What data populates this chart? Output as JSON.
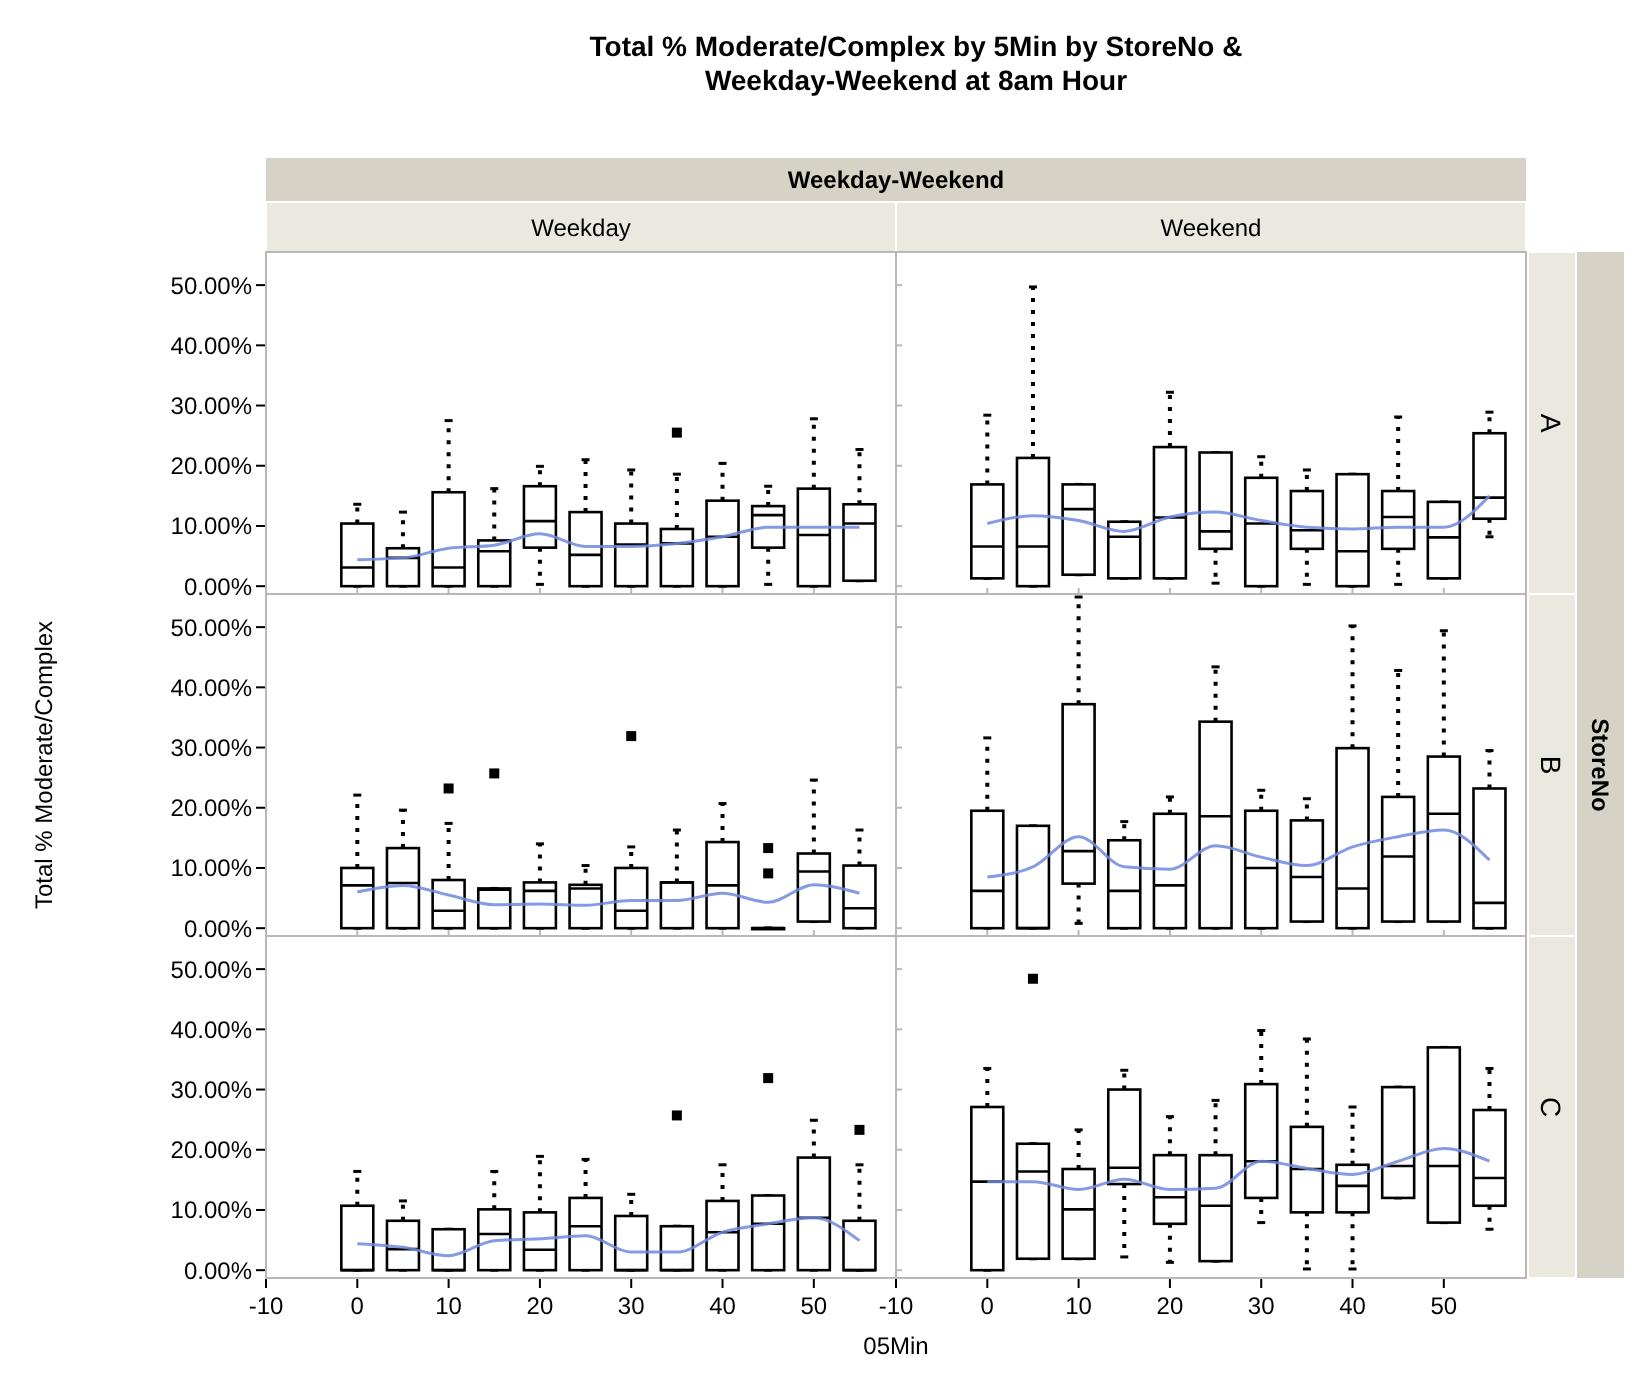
{
  "chart_data": [
    {
      "type": "box",
      "title": "Total % Moderate/Complex by 5Min by StoreNo & Weekday-Weekend at 8am Hour",
      "annotations": [
        "Weekday-Weekend",
        "StoreNo"
      ],
      "xlabel": "05Min",
      "ylabel": "Total % Moderate/Complex",
      "subtitle": "Weekday",
      "tick_labels": "y",
      "x": [
        0,
        5,
        10,
        15,
        20,
        25,
        30,
        35,
        40,
        45,
        50,
        55
      ],
      "xlim": [
        -10,
        59
      ],
      "xticks": [
        {
          "value": -10,
          "label": null
        },
        {
          "value": 0,
          "label": null
        },
        {
          "value": 10,
          "label": null
        },
        {
          "value": 20,
          "label": null
        },
        {
          "value": 30,
          "label": null
        },
        {
          "value": 40,
          "label": null
        },
        {
          "value": 50,
          "label": null
        }
      ],
      "ylim": [
        -1.3,
        55.5
      ],
      "yticks": [
        {
          "value": 0,
          "label": "0.00%"
        },
        {
          "value": 10,
          "label": "10.00%"
        },
        {
          "value": 20,
          "label": "20.00%"
        },
        {
          "value": 30,
          "label": "30.00%"
        },
        {
          "value": 40,
          "label": "40.00%"
        },
        {
          "value": 50,
          "label": "50.00%"
        }
      ],
      "series": [
        {
          "type": "box",
          "color": "#000000",
          "boxes": [
            {
              "low": 0,
              "q1": 0,
              "median": 3.1,
              "q3": 10.4,
              "high": 13.6
            },
            {
              "low": 0,
              "q1": 0,
              "median": 4.7,
              "q3": 6.3,
              "high": 12.3
            },
            {
              "low": 0,
              "q1": 0,
              "median": 3.1,
              "q3": 15.6,
              "high": 27.5
            },
            {
              "low": 0,
              "q1": 0,
              "median": 5.8,
              "q3": 7.6,
              "high": 16.2
            },
            {
              "low": 0.3,
              "q1": 6.4,
              "median": 10.8,
              "q3": 16.6,
              "high": 19.9
            },
            {
              "low": 0,
              "q1": 0,
              "median": 5.2,
              "q3": 12.3,
              "high": 21
            },
            {
              "low": 0,
              "q1": 0,
              "median": 6.9,
              "q3": 10.4,
              "high": 19.3
            },
            {
              "low": 0,
              "q1": 0,
              "median": 7.1,
              "q3": 9.5,
              "high": 18.6,
              "outliers": [
                25.5
              ]
            },
            {
              "low": 0,
              "q1": 0,
              "median": 8.2,
              "q3": 14.2,
              "high": 20.4
            },
            {
              "low": 0.3,
              "q1": 6.4,
              "median": 11.8,
              "q3": 13.3,
              "high": 16.6
            },
            {
              "low": 0,
              "q1": 0,
              "median": 8.5,
              "q3": 16.2,
              "high": 27.8
            },
            {
              "low": 0.9,
              "q1": 0.9,
              "median": 10.4,
              "q3": 13.6,
              "high": 22.7
            }
          ]
        },
        {
          "type": "line",
          "color": "#7088dd",
          "values": [
            4.4,
            4.7,
            6.3,
            6.8,
            8.7,
            6.6,
            6.6,
            7.1,
            8.2,
            9.8,
            9.8,
            9.8
          ]
        }
      ]
    },
    {
      "type": "box",
      "subtitle": "Weekend",
      "y2label": "A",
      "tick_labels": false,
      "x": [
        0,
        5,
        10,
        15,
        20,
        25,
        30,
        35,
        40,
        45,
        50,
        55
      ],
      "xlim": [
        -10,
        59
      ],
      "xticks": [
        {
          "value": -10,
          "label": null
        },
        {
          "value": 0,
          "label": null
        },
        {
          "value": 10,
          "label": null
        },
        {
          "value": 20,
          "label": null
        },
        {
          "value": 30,
          "label": null
        },
        {
          "value": 40,
          "label": null
        },
        {
          "value": 50,
          "label": null
        }
      ],
      "ylim": [
        -1.3,
        55.5
      ],
      "yticks": [
        {
          "value": 0,
          "label": null
        },
        {
          "value": 10,
          "label": null
        },
        {
          "value": 20,
          "label": null
        },
        {
          "value": 30,
          "label": null
        },
        {
          "value": 40,
          "label": null
        },
        {
          "value": 50,
          "label": null
        }
      ],
      "series": [
        {
          "type": "box",
          "color": "#000000",
          "boxes": [
            {
              "low": 1.3,
              "q1": 1.3,
              "median": 6.6,
              "q3": 16.9,
              "high": 28.4
            },
            {
              "low": 0,
              "q1": 0,
              "median": 6.6,
              "q3": 21.3,
              "high": 49.7
            },
            {
              "low": 1.9,
              "q1": 1.9,
              "median": 12.8,
              "q3": 16.9,
              "high": 16.9
            },
            {
              "low": 1.3,
              "q1": 1.3,
              "median": 8.2,
              "q3": 10.7,
              "high": 10.7
            },
            {
              "low": 1.3,
              "q1": 1.3,
              "median": 11.4,
              "q3": 23.1,
              "high": 32.2
            },
            {
              "low": 0.5,
              "q1": 6.2,
              "median": 9.1,
              "q3": 22.2,
              "high": 22.2
            },
            {
              "low": 0,
              "q1": 0,
              "median": 10.4,
              "q3": 18,
              "high": 21.5
            },
            {
              "low": 0.3,
              "q1": 6.2,
              "median": 9.3,
              "q3": 15.8,
              "high": 19.3
            },
            {
              "low": 0,
              "q1": 0,
              "median": 5.8,
              "q3": 18.6,
              "high": 18.6
            },
            {
              "low": 0.3,
              "q1": 6.2,
              "median": 11.5,
              "q3": 15.8,
              "high": 28.1
            },
            {
              "low": 1.3,
              "q1": 1.3,
              "median": 8.1,
              "q3": 14,
              "high": 14
            },
            {
              "low": 8.2,
              "q1": 11.2,
              "median": 14.7,
              "q3": 25.4,
              "high": 28.9
            }
          ]
        },
        {
          "type": "line",
          "color": "#7088dd",
          "values": [
            10.4,
            11.7,
            10.9,
            9.1,
            11.5,
            12.3,
            10.9,
            9.8,
            9.5,
            9.8,
            9.8,
            15
          ]
        }
      ]
    },
    {
      "type": "box",
      "tick_labels": "y",
      "x": [
        0,
        5,
        10,
        15,
        20,
        25,
        30,
        35,
        40,
        45,
        50,
        55
      ],
      "xlim": [
        -10,
        59
      ],
      "xticks": [
        {
          "value": -10,
          "label": null
        },
        {
          "value": 0,
          "label": null
        },
        {
          "value": 10,
          "label": null
        },
        {
          "value": 20,
          "label": null
        },
        {
          "value": 30,
          "label": null
        },
        {
          "value": 40,
          "label": null
        },
        {
          "value": 50,
          "label": null
        }
      ],
      "ylim": [
        -1.3,
        55.5
      ],
      "yticks": [
        {
          "value": 0,
          "label": "0.00%"
        },
        {
          "value": 10,
          "label": "10.00%"
        },
        {
          "value": 20,
          "label": "20.00%"
        },
        {
          "value": 30,
          "label": "30.00%"
        },
        {
          "value": 40,
          "label": "40.00%"
        },
        {
          "value": 50,
          "label": "50.00%"
        }
      ],
      "series": [
        {
          "type": "box",
          "color": "#000000",
          "boxes": [
            {
              "low": 0,
              "q1": 0,
              "median": 7.1,
              "q3": 10,
              "high": 22.1
            },
            {
              "low": 0,
              "q1": 0,
              "median": 7.5,
              "q3": 13.3,
              "high": 19.6
            },
            {
              "low": 0,
              "q1": 0,
              "median": 2.9,
              "q3": 8,
              "high": 17.4,
              "outliers": [
                23.2
              ]
            },
            {
              "low": 0,
              "q1": 0,
              "median": 6.4,
              "q3": 6.6,
              "high": 6.6,
              "outliers": [
                25.7
              ]
            },
            {
              "low": 0,
              "q1": 0,
              "median": 6.2,
              "q3": 7.6,
              "high": 14
            },
            {
              "low": 0,
              "q1": 0,
              "median": 6.6,
              "q3": 7.2,
              "high": 10.4
            },
            {
              "low": 0,
              "q1": 0,
              "median": 2.9,
              "q3": 10,
              "high": 13.5,
              "outliers": [
                31.9
              ]
            },
            {
              "low": 0,
              "q1": 0,
              "median": 7.6,
              "q3": 7.6,
              "high": 16.3
            },
            {
              "low": 0,
              "q1": 0,
              "median": 7.1,
              "q3": 14.3,
              "high": 20.7
            },
            {
              "low": 0,
              "q1": 0,
              "median": 0,
              "q3": 0,
              "high": 0,
              "outliers": [
                9.1,
                13.3
              ]
            },
            {
              "low": 1.1,
              "q1": 1.1,
              "median": 9.4,
              "q3": 12.4,
              "high": 24.6
            },
            {
              "low": 0,
              "q1": 0,
              "median": 3.3,
              "q3": 10.4,
              "high": 16.3
            }
          ]
        },
        {
          "type": "line",
          "color": "#7088dd",
          "values": [
            6,
            7.1,
            5.5,
            3.9,
            4,
            3.8,
            4.6,
            4.6,
            5.8,
            4.3,
            7.2,
            5.8
          ]
        }
      ]
    },
    {
      "type": "box",
      "y2label": "B",
      "tick_labels": false,
      "x": [
        0,
        5,
        10,
        15,
        20,
        25,
        30,
        35,
        40,
        45,
        50,
        55
      ],
      "xlim": [
        -10,
        59
      ],
      "xticks": [
        {
          "value": -10,
          "label": null
        },
        {
          "value": 0,
          "label": null
        },
        {
          "value": 10,
          "label": null
        },
        {
          "value": 20,
          "label": null
        },
        {
          "value": 30,
          "label": null
        },
        {
          "value": 40,
          "label": null
        },
        {
          "value": 50,
          "label": null
        }
      ],
      "ylim": [
        -1.3,
        55.5
      ],
      "yticks": [
        {
          "value": 0,
          "label": null
        },
        {
          "value": 10,
          "label": null
        },
        {
          "value": 20,
          "label": null
        },
        {
          "value": 30,
          "label": null
        },
        {
          "value": 40,
          "label": null
        },
        {
          "value": 50,
          "label": null
        }
      ],
      "series": [
        {
          "type": "box",
          "color": "#000000",
          "boxes": [
            {
              "low": 0,
              "q1": 0,
              "median": 6.2,
              "q3": 19.5,
              "high": 31.6
            },
            {
              "low": 0,
              "q1": 0,
              "median": 0,
              "q3": 17,
              "high": 17
            },
            {
              "low": 0.8,
              "q1": 7.4,
              "median": 12.8,
              "q3": 37.2,
              "high": 55
            },
            {
              "low": 0,
              "q1": 0,
              "median": 6.2,
              "q3": 14.6,
              "high": 17.7
            },
            {
              "low": 0,
              "q1": 0,
              "median": 7.1,
              "q3": 19,
              "high": 21.8
            },
            {
              "low": 0,
              "q1": 0,
              "median": 18.6,
              "q3": 34.3,
              "high": 43.4
            },
            {
              "low": 0,
              "q1": 0,
              "median": 10,
              "q3": 19.5,
              "high": 22.9
            },
            {
              "low": 1.1,
              "q1": 1.1,
              "median": 8.5,
              "q3": 17.9,
              "high": 21.5
            },
            {
              "low": 0,
              "q1": 0,
              "median": 6.6,
              "q3": 29.9,
              "high": 50.2
            },
            {
              "low": 1.1,
              "q1": 1.1,
              "median": 11.9,
              "q3": 21.8,
              "high": 42.8
            },
            {
              "low": 1.1,
              "q1": 1.1,
              "median": 19,
              "q3": 28.5,
              "high": 49.4
            },
            {
              "low": 0,
              "q1": 0,
              "median": 4.2,
              "q3": 23.2,
              "high": 29.5
            }
          ]
        },
        {
          "type": "line",
          "color": "#7088dd",
          "values": [
            8.5,
            10.2,
            15.2,
            10.2,
            9.8,
            13.7,
            11.8,
            10.4,
            13.5,
            15.2,
            16.3,
            11.3
          ]
        }
      ]
    },
    {
      "type": "box",
      "x": [
        0,
        5,
        10,
        15,
        20,
        25,
        30,
        35,
        40,
        45,
        50,
        55
      ],
      "xlim": [
        -10,
        59
      ],
      "xticks": [
        -10,
        0,
        10,
        20,
        30,
        40,
        50
      ],
      "ylim": [
        -1.3,
        55.5
      ],
      "yticks": [
        {
          "value": 0,
          "label": "0.00%"
        },
        {
          "value": 10,
          "label": "10.00%"
        },
        {
          "value": 20,
          "label": "20.00%"
        },
        {
          "value": 30,
          "label": "30.00%"
        },
        {
          "value": 40,
          "label": "40.00%"
        },
        {
          "value": 50,
          "label": "50.00%"
        }
      ],
      "series": [
        {
          "type": "box",
          "color": "#000000",
          "boxes": [
            {
              "low": 0,
              "q1": 0,
              "median": 0,
              "q3": 10.7,
              "high": 16.4
            },
            {
              "low": 0,
              "q1": 0,
              "median": 3.5,
              "q3": 8.2,
              "high": 11.5
            },
            {
              "low": 0,
              "q1": 0,
              "median": 0,
              "q3": 6.8,
              "high": 6.8
            },
            {
              "low": 0,
              "q1": 0,
              "median": 6,
              "q3": 10.1,
              "high": 16.4
            },
            {
              "low": 0,
              "q1": 0,
              "median": 3.4,
              "q3": 9.6,
              "high": 18.9
            },
            {
              "low": 0,
              "q1": 0,
              "median": 7.3,
              "q3": 12,
              "high": 18.4
            },
            {
              "low": 0,
              "q1": 0,
              "median": 0,
              "q3": 9,
              "high": 12.6
            },
            {
              "low": 0,
              "q1": 0,
              "median": 0,
              "q3": 7.3,
              "high": 7.3,
              "outliers": [
                25.7
              ]
            },
            {
              "low": 0,
              "q1": 0,
              "median": 6.3,
              "q3": 11.5,
              "high": 17.5
            },
            {
              "low": 0,
              "q1": 0,
              "median": 7.7,
              "q3": 12.4,
              "high": 12.4,
              "outliers": [
                31.9
              ]
            },
            {
              "low": 0,
              "q1": 0,
              "median": 8.7,
              "q3": 18.7,
              "high": 24.9
            },
            {
              "low": 0,
              "q1": 0,
              "median": 0,
              "q3": 8.2,
              "high": 17.5,
              "outliers": [
                23.3
              ]
            }
          ]
        },
        {
          "type": "line",
          "color": "#7088dd",
          "values": [
            4.4,
            3.8,
            2.4,
            4.9,
            5.2,
            5.7,
            3,
            3,
            6.3,
            7.7,
            8.7,
            4.9
          ]
        }
      ]
    },
    {
      "type": "box",
      "y2label": "C",
      "tick_labels": "x",
      "x": [
        0,
        5,
        10,
        15,
        20,
        25,
        30,
        35,
        40,
        45,
        50,
        55
      ],
      "xlim": [
        -10,
        59
      ],
      "xticks": [
        -10,
        0,
        10,
        20,
        30,
        40,
        50
      ],
      "ylim": [
        -1.3,
        55.5
      ],
      "yticks": [
        {
          "value": 0,
          "label": null
        },
        {
          "value": 10,
          "label": null
        },
        {
          "value": 20,
          "label": null
        },
        {
          "value": 30,
          "label": null
        },
        {
          "value": 40,
          "label": null
        },
        {
          "value": 50,
          "label": null
        }
      ],
      "series": [
        {
          "type": "box",
          "color": "#000000",
          "boxes": [
            {
              "low": 0,
              "q1": 0,
              "median": 14.7,
              "q3": 27.1,
              "high": 33.5
            },
            {
              "low": 1.9,
              "q1": 1.9,
              "median": 16.4,
              "q3": 21,
              "high": 21,
              "outliers": [
                48.4
              ]
            },
            {
              "low": 1.9,
              "q1": 1.9,
              "median": 10.1,
              "q3": 16.8,
              "high": 23.3
            },
            {
              "low": 2.2,
              "q1": 14.3,
              "median": 17,
              "q3": 30,
              "high": 33.2
            },
            {
              "low": 1.3,
              "q1": 7.7,
              "median": 12.1,
              "q3": 19.1,
              "high": 25.5
            },
            {
              "low": 1.5,
              "q1": 1.5,
              "median": 10.7,
              "q3": 19.1,
              "high": 28.2
            },
            {
              "low": 7.9,
              "q1": 12,
              "median": 18.1,
              "q3": 30.9,
              "high": 39.8
            },
            {
              "low": 0.2,
              "q1": 9.6,
              "median": 16.8,
              "q3": 23.8,
              "high": 38.4
            },
            {
              "low": 0.2,
              "q1": 9.6,
              "median": 14,
              "q3": 17.5,
              "high": 27.1
            },
            {
              "low": 12,
              "q1": 12,
              "median": 17.3,
              "q3": 30.4,
              "high": 30.4
            },
            {
              "low": 7.9,
              "q1": 7.9,
              "median": 17.3,
              "q3": 37,
              "high": 37
            },
            {
              "low": 6.8,
              "q1": 10.7,
              "median": 15.3,
              "q3": 26.6,
              "high": 33.5
            }
          ]
        },
        {
          "type": "line",
          "color": "#7088dd",
          "values": [
            14.7,
            14.7,
            13.4,
            15.1,
            13.4,
            13.6,
            18.1,
            16.9,
            15.9,
            18.1,
            20.2,
            18.1
          ]
        }
      ]
    }
  ]
}
